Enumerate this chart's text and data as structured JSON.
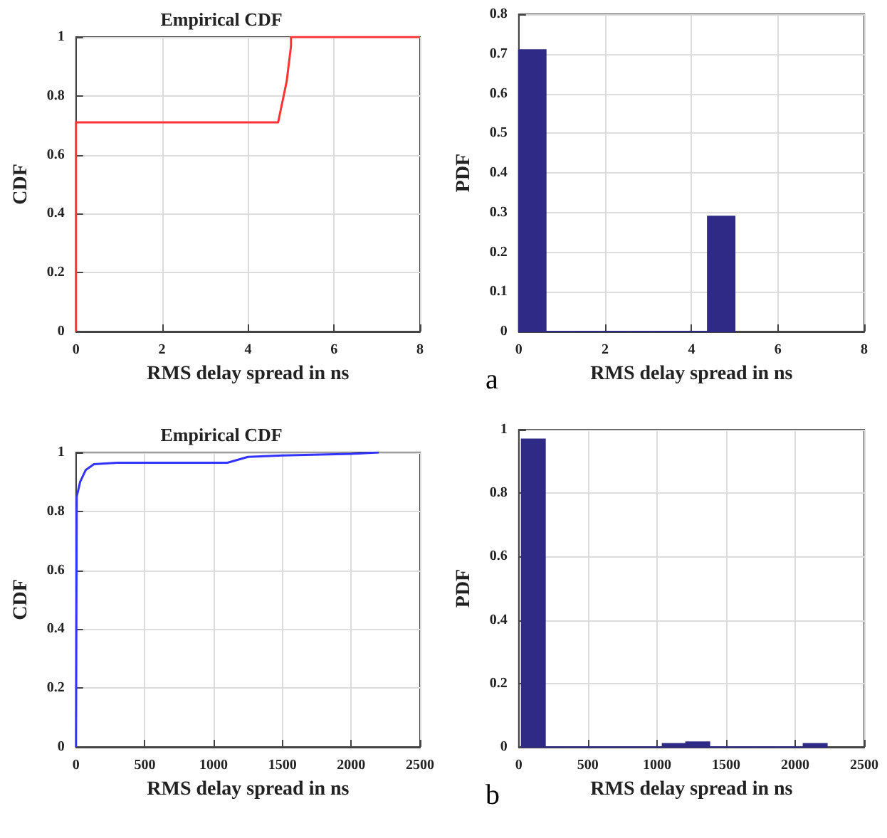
{
  "chart_data": [
    {
      "type": "line",
      "title": "Empirical CDF",
      "xlabel": "RMS delay spread in ns",
      "ylabel": "CDF",
      "xlim": [
        0,
        8
      ],
      "xticks": [
        0,
        2,
        4,
        6,
        8
      ],
      "ylim": [
        0,
        1
      ],
      "yticks": [
        0,
        0.2,
        0.4,
        0.6,
        0.8,
        1
      ],
      "grid": true,
      "series": [
        {
          "color": "#ff3333",
          "x": [
            0,
            0,
            4.7,
            4.9,
            5,
            5,
            8
          ],
          "values": [
            0,
            0.71,
            0.71,
            0.85,
            0.97,
            1,
            1
          ]
        }
      ]
    },
    {
      "type": "histogram",
      "xlabel": "RMS delay spread in ns",
      "ylabel": "PDF",
      "xlim": [
        0,
        8
      ],
      "xticks": [
        0,
        2,
        4,
        6,
        8
      ],
      "ylim": [
        0,
        0.8
      ],
      "yticks": [
        0,
        0.1,
        0.2,
        0.3,
        0.4,
        0.5,
        0.6,
        0.7,
        0.8
      ],
      "grid": true,
      "color": "#2e2a85",
      "bins": [
        0,
        0.625,
        1.25,
        1.875,
        2.5,
        3.125,
        3.75,
        4.375,
        5
      ],
      "values": [
        0.71,
        0,
        0,
        0,
        0,
        0,
        0,
        0.29
      ],
      "annotations": [
        "a"
      ]
    },
    {
      "type": "line",
      "title": "Empirical CDF",
      "xlabel": "RMS delay spread in ns",
      "ylabel": "CDF",
      "xlim": [
        0,
        2500
      ],
      "xticks": [
        0,
        500,
        1000,
        1500,
        2000,
        2500
      ],
      "ylim": [
        0,
        1
      ],
      "yticks": [
        0,
        0.2,
        0.4,
        0.6,
        0.8,
        1
      ],
      "grid": true,
      "series": [
        {
          "color": "#3333ff",
          "x": [
            0,
            5,
            30,
            70,
            130,
            300,
            1100,
            1250,
            1500,
            2000,
            2200
          ],
          "values": [
            0,
            0.85,
            0.9,
            0.94,
            0.96,
            0.965,
            0.965,
            0.985,
            0.99,
            0.995,
            1
          ]
        }
      ]
    },
    {
      "type": "histogram",
      "xlabel": "RMS delay spread in ns",
      "ylabel": "PDF",
      "xlim": [
        0,
        2500
      ],
      "xticks": [
        0,
        500,
        1000,
        1500,
        2000,
        2500
      ],
      "ylim": [
        0,
        1
      ],
      "yticks": [
        0,
        0.2,
        0.4,
        0.6,
        0.8,
        1
      ],
      "grid": true,
      "color": "#2e2a85",
      "bins": [
        20,
        190,
        360,
        530,
        700,
        870,
        1040,
        1210,
        1380,
        1550,
        1720,
        1890,
        2060,
        2230
      ],
      "values": [
        0.97,
        0,
        0,
        0,
        0,
        0,
        0.01,
        0.015,
        0,
        0,
        0,
        0,
        0.01
      ],
      "annotations": [
        "b"
      ]
    }
  ]
}
